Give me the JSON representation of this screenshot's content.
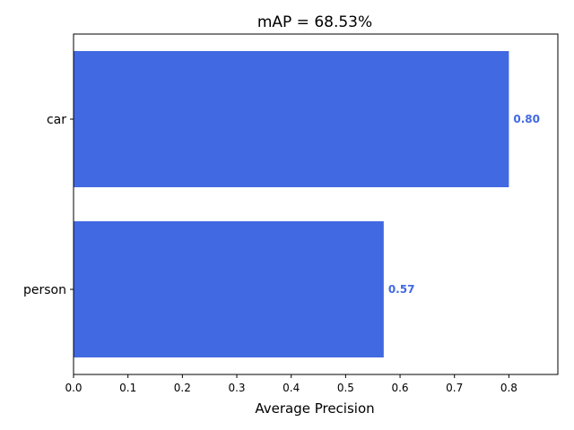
{
  "chart_data": {
    "type": "bar",
    "orientation": "horizontal",
    "title": "mAP = 68.53%",
    "xlabel": "Average Precision",
    "ylabel": "",
    "categories": [
      "car",
      "person"
    ],
    "values": [
      0.8,
      0.57
    ],
    "value_labels": [
      "0.80",
      "0.57"
    ],
    "xlim": [
      0.0,
      0.89
    ],
    "xticks": [
      "0.0",
      "0.1",
      "0.2",
      "0.3",
      "0.4",
      "0.5",
      "0.6",
      "0.7",
      "0.8"
    ],
    "grid": false,
    "bar_color": "#4169E1",
    "label_color": "#4169E1"
  }
}
